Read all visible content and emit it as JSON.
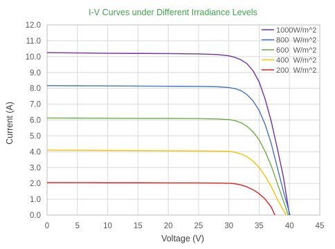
{
  "chart_data": {
    "type": "line",
    "title": "I-V Curves under Different Irradiance Levels",
    "xlabel": "Voltage (V)",
    "ylabel": "Current (A)",
    "xlim": [
      0,
      45
    ],
    "ylim": [
      0,
      12
    ],
    "xticks": [
      0,
      5,
      10,
      15,
      20,
      25,
      30,
      35,
      40,
      45
    ],
    "yticks": [
      0.0,
      1.0,
      2.0,
      3.0,
      4.0,
      5.0,
      6.0,
      7.0,
      8.0,
      9.0,
      10.0,
      11.0,
      12.0
    ],
    "xtick_labels": [
      "0",
      "5",
      "10",
      "15",
      "20",
      "25",
      "30",
      "35",
      "40",
      "45"
    ],
    "ytick_labels": [
      "0.0",
      "1.0",
      "2.0",
      "3.0",
      "4.0",
      "5.0",
      "6.0",
      "7.0",
      "8.0",
      "9.0",
      "10.0",
      "11.0",
      "12.0"
    ],
    "grid": true,
    "legend_position": "top-right",
    "colors": {
      "title": "#3ea84a",
      "axis_text": "#595959",
      "grid": "#d9d9d9"
    },
    "series": [
      {
        "name": "1000W/m^2",
        "color": "#7030a0",
        "points": [
          [
            0,
            10.25
          ],
          [
            5,
            10.23
          ],
          [
            10,
            10.21
          ],
          [
            15,
            10.2
          ],
          [
            20,
            10.19
          ],
          [
            25,
            10.17
          ],
          [
            28,
            10.13
          ],
          [
            30,
            10.05
          ],
          [
            31,
            9.95
          ],
          [
            32,
            9.8
          ],
          [
            33,
            9.55
          ],
          [
            34,
            9.1
          ],
          [
            35,
            8.4
          ],
          [
            36,
            7.3
          ],
          [
            37,
            5.9
          ],
          [
            38,
            4.2
          ],
          [
            39,
            2.4
          ],
          [
            40,
            0.0
          ]
        ]
      },
      {
        "name": "800  W/m^2",
        "color": "#4472c4",
        "points": [
          [
            0,
            8.17
          ],
          [
            5,
            8.16
          ],
          [
            10,
            8.15
          ],
          [
            15,
            8.14
          ],
          [
            20,
            8.13
          ],
          [
            25,
            8.12
          ],
          [
            28,
            8.1
          ],
          [
            30,
            8.05
          ],
          [
            31,
            7.98
          ],
          [
            32,
            7.85
          ],
          [
            33,
            7.6
          ],
          [
            34,
            7.2
          ],
          [
            35,
            6.6
          ],
          [
            36,
            5.7
          ],
          [
            37,
            4.5
          ],
          [
            38,
            3.0
          ],
          [
            39,
            1.5
          ],
          [
            40.1,
            0.0
          ]
        ]
      },
      {
        "name": "600  W/m^2",
        "color": "#70ad47",
        "points": [
          [
            0,
            6.13
          ],
          [
            5,
            6.12
          ],
          [
            10,
            6.11
          ],
          [
            15,
            6.1
          ],
          [
            20,
            6.1
          ],
          [
            25,
            6.09
          ],
          [
            28,
            6.07
          ],
          [
            30,
            6.03
          ],
          [
            31,
            5.96
          ],
          [
            32,
            5.83
          ],
          [
            33,
            5.6
          ],
          [
            34,
            5.25
          ],
          [
            35,
            4.75
          ],
          [
            36,
            4.0
          ],
          [
            37,
            3.1
          ],
          [
            38,
            2.0
          ],
          [
            39,
            0.9
          ],
          [
            39.8,
            0.0
          ]
        ]
      },
      {
        "name": "400  W/m^2",
        "color": "#ffc000",
        "points": [
          [
            0,
            4.1
          ],
          [
            5,
            4.09
          ],
          [
            10,
            4.08
          ],
          [
            15,
            4.07
          ],
          [
            20,
            4.06
          ],
          [
            25,
            4.05
          ],
          [
            28,
            4.04
          ],
          [
            30,
            4.02
          ],
          [
            31,
            3.97
          ],
          [
            32,
            3.86
          ],
          [
            33,
            3.68
          ],
          [
            34,
            3.4
          ],
          [
            35,
            3.0
          ],
          [
            36,
            2.45
          ],
          [
            37,
            1.8
          ],
          [
            38,
            1.0
          ],
          [
            39,
            0.3
          ],
          [
            39.5,
            0.0
          ]
        ]
      },
      {
        "name": "200  W/m^2",
        "color": "#e02020",
        "points": [
          [
            0,
            2.05
          ],
          [
            5,
            2.05
          ],
          [
            10,
            2.04
          ],
          [
            15,
            2.04
          ],
          [
            20,
            2.03
          ],
          [
            25,
            2.03
          ],
          [
            28,
            2.02
          ],
          [
            30,
            2.01
          ],
          [
            31,
            1.98
          ],
          [
            32,
            1.9
          ],
          [
            33,
            1.78
          ],
          [
            34,
            1.6
          ],
          [
            35,
            1.35
          ],
          [
            36,
            1.0
          ],
          [
            37,
            0.5
          ],
          [
            37.6,
            0.0
          ]
        ]
      }
    ]
  }
}
